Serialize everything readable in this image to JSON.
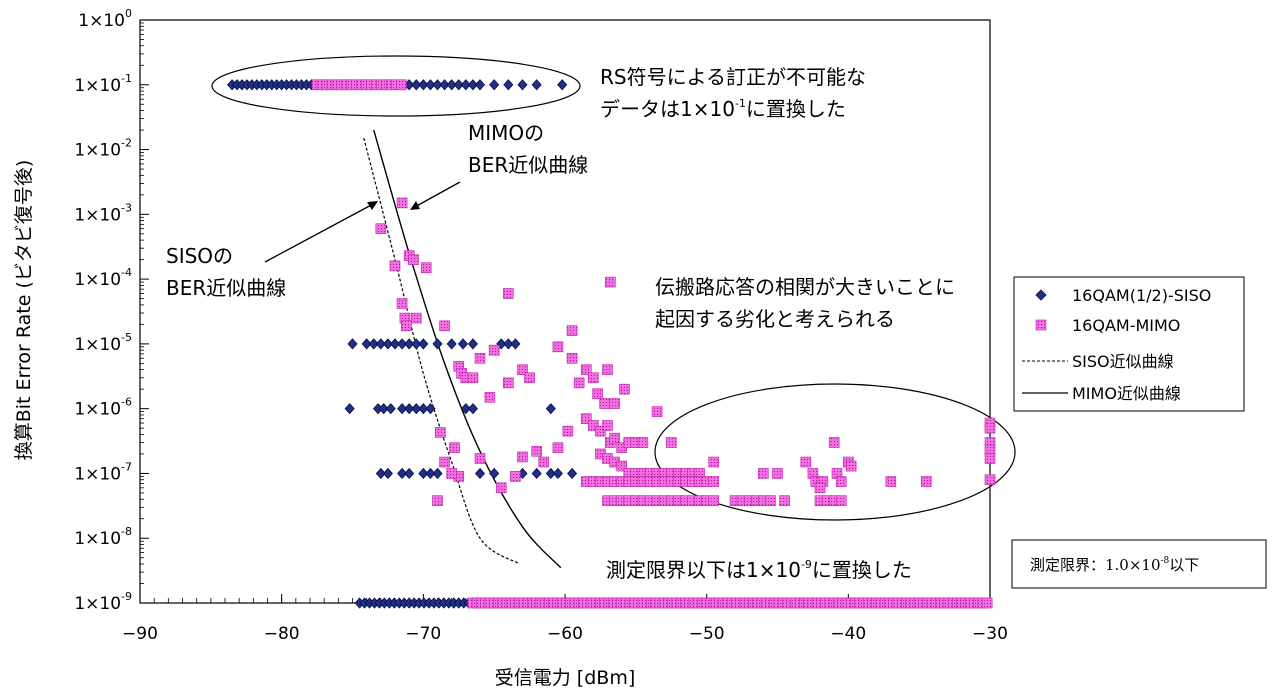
{
  "chart_data": {
    "type": "scatter",
    "xlabel": "受信電力 [dBm]",
    "ylabel": "換算Bit Error Rate (ビタビ復号後)",
    "xlim": [
      -90,
      -30
    ],
    "ylim_exp": [
      -9,
      0
    ],
    "y_scale": "log",
    "x_ticks": [
      "-90",
      "-80",
      "-70",
      "-60",
      "-50",
      "-40",
      "-30"
    ],
    "y_ticks": [
      {
        "exp": 0,
        "mant": "1×10",
        "sup": "0"
      },
      {
        "exp": -1,
        "mant": "1×10",
        "sup": "-1"
      },
      {
        "exp": -2,
        "mant": "1×10",
        "sup": "-2"
      },
      {
        "exp": -3,
        "mant": "1×10",
        "sup": "-3"
      },
      {
        "exp": -4,
        "mant": "1×10",
        "sup": "-4"
      },
      {
        "exp": -5,
        "mant": "1×10",
        "sup": "-5"
      },
      {
        "exp": -6,
        "mant": "1×10",
        "sup": "-6"
      },
      {
        "exp": -7,
        "mant": "1×10",
        "sup": "-7"
      },
      {
        "exp": -8,
        "mant": "1×10",
        "sup": "-8"
      },
      {
        "exp": -9,
        "mant": "1×10",
        "sup": "-9"
      }
    ],
    "legend_position": "right",
    "series": [
      {
        "name": "16QAM(1/2)-SISO",
        "marker": "diamond",
        "color": "#1f2f8a",
        "groups": [
          {
            "y": 0.1,
            "x_from": -83.5,
            "x_to": -72,
            "step": 0.35
          },
          {
            "y": 0.1,
            "x_pts": [
              -71.5,
              -71,
              -70.5,
              -70,
              -69.5,
              -69,
              -68.5,
              -68,
              -67.5,
              -67,
              -66.5,
              -66,
              -65,
              -64,
              -63,
              -62,
              -60.2
            ]
          },
          {
            "y": 1e-05,
            "x_pts": [
              -75,
              -74,
              -73.5,
              -73,
              -72.5,
              -72,
              -71.5,
              -71,
              -70.5,
              -70,
              -69,
              -68,
              -67.2,
              -66.5,
              -64.5,
              -64,
              -63.5
            ]
          },
          {
            "y": 1e-06,
            "x_pts": [
              -75.2,
              -73.2,
              -72.8,
              -72.3,
              -71.5,
              -71,
              -70.5,
              -70,
              -69.5,
              -67,
              -66.5,
              -61
            ]
          },
          {
            "y": 1e-07,
            "x_pts": [
              -73,
              -72.5,
              -71.5,
              -71,
              -70,
              -69.5,
              -69,
              -66,
              -65,
              -63,
              -62,
              -61,
              -60.5,
              -59.5
            ]
          },
          {
            "y": 1e-09,
            "x_from": -74.5,
            "x_to": -58.5,
            "step": 0.35
          }
        ]
      },
      {
        "name": "16QAM-MIMO",
        "marker": "square",
        "color": "#ee3fd8",
        "groups": [
          {
            "y": 0.1,
            "x_from": -77.5,
            "x_to": -71.5,
            "step": 0.35
          },
          {
            "y": 1e-09,
            "x_from": -66.5,
            "x_to": -30,
            "step": 0.3
          },
          {
            "pts": [
              [
                -71.5,
                0.0015
              ],
              [
                -73,
                0.0006
              ],
              [
                -71,
                0.00023
              ],
              [
                -70.7,
                0.0002
              ],
              [
                -72,
                0.00016
              ],
              [
                -69.8,
                0.00015
              ],
              [
                -71.5,
                4.2e-05
              ],
              [
                -71.3,
                2.5e-05
              ],
              [
                -70.5,
                2.5e-05
              ],
              [
                -71.2,
                1.9e-05
              ],
              [
                -68.5,
                1.9e-05
              ],
              [
                -64,
                6e-05
              ],
              [
                -56.8,
                9e-05
              ],
              [
                -67.5,
                4.5e-06
              ],
              [
                -67.3,
                3.5e-06
              ],
              [
                -67,
                3e-06
              ],
              [
                -66.5,
                3e-06
              ],
              [
                -66,
                6e-06
              ],
              [
                -65.3,
                1.5e-06
              ],
              [
                -65,
                8e-06
              ],
              [
                -64,
                2.5e-06
              ],
              [
                -63,
                4e-06
              ],
              [
                -62.5,
                3e-06
              ],
              [
                -59.5,
                6e-06
              ],
              [
                -59,
                2.5e-06
              ],
              [
                -58.5,
                4e-06
              ],
              [
                -58,
                3e-06
              ],
              [
                -57.7,
                1.7e-06
              ],
              [
                -57.2,
                1.2e-06
              ],
              [
                -56.5,
                1.2e-06
              ],
              [
                -55.8,
                2e-06
              ],
              [
                -60.5,
                9e-06
              ],
              [
                -59.5,
                1.6e-05
              ],
              [
                -57,
                4e-06
              ],
              [
                -53.5,
                9e-07
              ],
              [
                -58.5,
                7e-07
              ],
              [
                -59.8,
                4.5e-07
              ],
              [
                -60.5,
                2.5e-07
              ],
              [
                -61.5,
                1.5e-07
              ],
              [
                -62,
                2.2e-07
              ],
              [
                -63,
                1.8e-07
              ],
              [
                -63.5,
                9e-08
              ],
              [
                -64.5,
                6e-08
              ],
              [
                -66,
                1.7e-07
              ],
              [
                -67.5,
                9e-08
              ],
              [
                -68,
                1e-07
              ],
              [
                -68.5,
                1.5e-07
              ],
              [
                -69,
                3.8e-08
              ],
              [
                -68.8,
                4.3e-07
              ],
              [
                -67.8,
                2.5e-07
              ],
              [
                -58,
                5.5e-07
              ],
              [
                -57.5,
                4.5e-07
              ],
              [
                -57,
                5.5e-07
              ],
              [
                -56.8,
                3e-07
              ],
              [
                -56.5,
                3.5e-07
              ],
              [
                -56,
                2.5e-07
              ],
              [
                -55.5,
                3e-07
              ],
              [
                -55,
                3e-07
              ],
              [
                -54.5,
                3e-07
              ],
              [
                -57.5,
                2e-07
              ],
              [
                -57,
                1.7e-07
              ],
              [
                -56.5,
                1.5e-07
              ],
              [
                -56,
                1.3e-07
              ],
              [
                -55.5,
                1e-07
              ],
              [
                -55,
                1e-07
              ],
              [
                -54.5,
                1e-07
              ],
              [
                -54,
                1e-07
              ],
              [
                -53.5,
                1e-07
              ],
              [
                -53,
                1e-07
              ],
              [
                -52.5,
                1e-07
              ],
              [
                -52,
                1e-07
              ],
              [
                -51.5,
                1e-07
              ],
              [
                -51,
                1e-07
              ],
              [
                -50.5,
                1e-07
              ],
              [
                -58.5,
                7.5e-08
              ],
              [
                -58,
                7.5e-08
              ],
              [
                -57.5,
                7.5e-08
              ],
              [
                -57,
                7.5e-08
              ],
              [
                -56.5,
                7.5e-08
              ],
              [
                -56,
                7.5e-08
              ],
              [
                -55.5,
                7.5e-08
              ],
              [
                -55,
                7.5e-08
              ],
              [
                -54.5,
                7.5e-08
              ],
              [
                -54,
                7.5e-08
              ],
              [
                -53.5,
                7.5e-08
              ],
              [
                -53,
                7.5e-08
              ],
              [
                -52.5,
                7.5e-08
              ],
              [
                -52,
                7.5e-08
              ],
              [
                -51.5,
                7.5e-08
              ],
              [
                -51,
                7.5e-08
              ],
              [
                -50.5,
                7.5e-08
              ],
              [
                -50,
                7.5e-08
              ],
              [
                -49.5,
                7.5e-08
              ],
              [
                -57,
                3.8e-08
              ],
              [
                -56.5,
                3.8e-08
              ],
              [
                -56,
                3.8e-08
              ],
              [
                -55.5,
                3.8e-08
              ],
              [
                -55,
                3.8e-08
              ],
              [
                -54.5,
                3.8e-08
              ],
              [
                -54,
                3.8e-08
              ],
              [
                -53.5,
                3.8e-08
              ],
              [
                -53,
                3.8e-08
              ],
              [
                -52.5,
                3.8e-08
              ],
              [
                -52,
                3.8e-08
              ],
              [
                -51.5,
                3.8e-08
              ],
              [
                -51,
                3.8e-08
              ],
              [
                -50.5,
                3.8e-08
              ],
              [
                -50,
                3.8e-08
              ],
              [
                -49.5,
                3.8e-08
              ],
              [
                -48,
                3.8e-08
              ],
              [
                -47.5,
                3.8e-08
              ],
              [
                -47,
                3.8e-08
              ],
              [
                -46.5,
                3.8e-08
              ],
              [
                -46,
                3.8e-08
              ],
              [
                -45.5,
                3.8e-08
              ],
              [
                -44.5,
                3.8e-08
              ],
              [
                -42,
                3.8e-08
              ],
              [
                -41.5,
                3.8e-08
              ],
              [
                -41,
                3.8e-08
              ],
              [
                -40.5,
                3.8e-08
              ],
              [
                -52.5,
                3e-07
              ],
              [
                -49.5,
                1.5e-07
              ],
              [
                -46,
                1e-07
              ],
              [
                -45,
                1e-07
              ],
              [
                -43,
                1.5e-07
              ],
              [
                -42.5,
                1e-07
              ],
              [
                -42.3,
                7.5e-08
              ],
              [
                -41.8,
                7.5e-08
              ],
              [
                -41,
                3e-07
              ],
              [
                -40.8,
                1e-07
              ],
              [
                -40.5,
                7.5e-08
              ],
              [
                -40,
                1.5e-07
              ],
              [
                -39.8,
                1.3e-07
              ],
              [
                -42,
                6e-08
              ],
              [
                -37,
                7.5e-08
              ],
              [
                -34.5,
                7.5e-08
              ],
              [
                -30,
                6e-07
              ],
              [
                -30,
                5e-07
              ],
              [
                -30,
                3e-07
              ],
              [
                -30,
                2.3e-07
              ],
              [
                -30,
                1.7e-07
              ],
              [
                -30,
                8e-08
              ]
            ]
          }
        ]
      },
      {
        "name": "SISO近似曲線",
        "line_style": "dashed",
        "color": "#000000",
        "points": [
          [
            -74.2,
            0.015
          ],
          [
            -72,
            0.0002
          ],
          [
            -70,
            3.5e-06
          ],
          [
            -68,
            1.5e-07
          ],
          [
            -66,
            1e-08
          ],
          [
            -63.2,
            4e-09
          ]
        ]
      },
      {
        "name": "MIMO近似曲線",
        "line_style": "solid",
        "color": "#000000",
        "points": [
          [
            -73.5,
            0.02
          ],
          [
            -71,
            0.00025
          ],
          [
            -68.5,
            5e-06
          ],
          [
            -66,
            2.2e-07
          ],
          [
            -63,
            1.5e-08
          ],
          [
            -60.3,
            3.5e-09
          ]
        ]
      }
    ],
    "annotations": {
      "rs_line1": "RS符号による訂正が不可能な",
      "rs_line2_pre": "データは1×10",
      "rs_line2_sup": "-1",
      "rs_line2_post": "に置換した",
      "mimo_line1": "MIMOの",
      "mimo_line2": "BER近似曲線",
      "siso_line1": "SISOの",
      "siso_line2": "BER近似曲線",
      "corr_line1": "伝搬路応答の相関が大きいことに",
      "corr_line2": "起因する劣化と考えられる",
      "limit_pre": "測定限界以下は1×10",
      "limit_sup": "-9",
      "limit_post": "に置換した",
      "note_pre": "測定限界：1.0×10",
      "note_sup": "-8",
      "note_post": "以下"
    }
  }
}
